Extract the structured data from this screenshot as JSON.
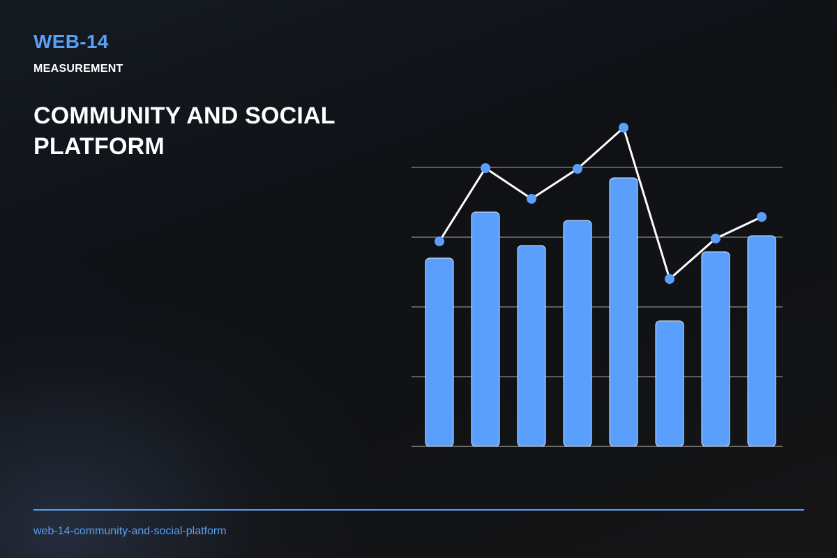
{
  "header": {
    "code": "WEB-14",
    "category": "MEASUREMENT",
    "title": "COMMUNITY AND SOCIAL PLATFORM"
  },
  "footer": {
    "slug": "web-14-community-and-social-platform"
  },
  "colors": {
    "accent": "#5aa0f5",
    "bar": "#5b9ffc",
    "line": "#ffffff",
    "gridline": "#d8d8d8"
  },
  "chart_data": {
    "type": "bar",
    "categories": [
      "",
      "",
      "",
      "",
      "",
      "",
      "",
      ""
    ],
    "series": [
      {
        "type": "bar",
        "values": [
          54,
          67.2,
          57.6,
          64.8,
          77,
          36,
          55.8,
          60.4
        ]
      },
      {
        "type": "line",
        "values": [
          58.8,
          79.8,
          71,
          79.6,
          91.4,
          48,
          59.6,
          65.8
        ]
      }
    ],
    "ylim": [
      0,
      100
    ],
    "grid": true,
    "title": "",
    "xlabel": "",
    "ylabel": ""
  }
}
